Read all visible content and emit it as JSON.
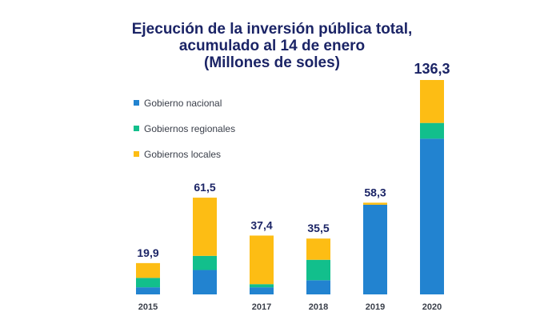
{
  "chart_data": {
    "type": "bar",
    "stacked": true,
    "title_lines": [
      "Ejecución de la inversión pública total,",
      "acumulado al 14 de enero",
      "(Millones de soles)"
    ],
    "categories": [
      "2015",
      "",
      "2017",
      "2018",
      "2019",
      "2020"
    ],
    "totals": [
      "19,9",
      "61,5",
      "37,4",
      "35,5",
      "58,3",
      "136,3"
    ],
    "total_values": [
      19.9,
      61.5,
      37.4,
      35.5,
      58.3,
      136.3
    ],
    "series": [
      {
        "name": "Gobierno nacional",
        "color": "#2283d0",
        "values": [
          4.5,
          15.5,
          4.5,
          9.0,
          57.0,
          99.0
        ]
      },
      {
        "name": "Gobiernos regionales",
        "color": "#12bf8c",
        "values": [
          6.0,
          9.0,
          2.0,
          13.0,
          0.0,
          10.0
        ]
      },
      {
        "name": "Gobiernos locales",
        "color": "#fdbd14",
        "values": [
          9.4,
          37.0,
          30.9,
          13.5,
          1.3,
          27.3
        ]
      }
    ],
    "legend_position": "upper-left",
    "grid": false,
    "ylim": [
      0,
      136.3
    ]
  }
}
